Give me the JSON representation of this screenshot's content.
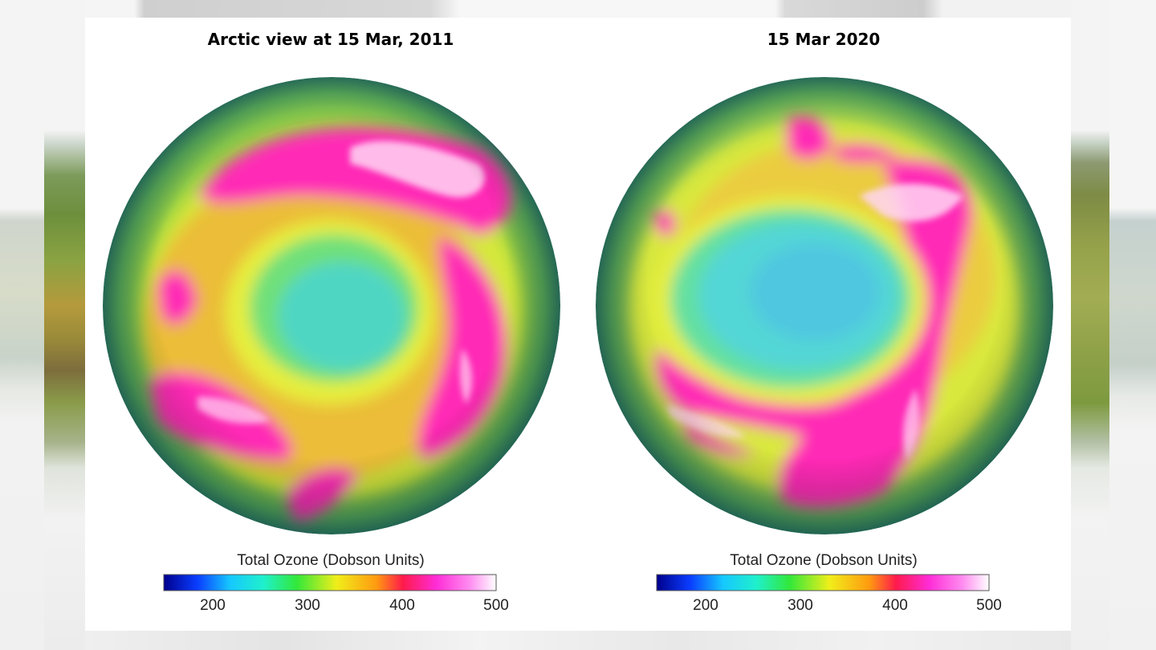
{
  "colors": {
    "ocean_rim": "#2f7d62",
    "low_ozone": "#4fd0c8",
    "mid_ozone": "#e9ee3c",
    "high_ozone": "#ff1fb4",
    "very_high_ozone": "#ffe6f6"
  },
  "maps": [
    {
      "title": "Arctic view at 15 Mar, 2011",
      "colorbar": {
        "label": "Total Ozone  (Dobson Units)",
        "ticks": [
          "200",
          "300",
          "400",
          "500"
        ],
        "range": [
          150,
          500
        ]
      }
    },
    {
      "title": "15 Mar 2020",
      "colorbar": {
        "label": "Total Ozone  (Dobson Units)",
        "ticks": [
          "200",
          "300",
          "400",
          "500"
        ],
        "range": [
          150,
          500
        ]
      }
    }
  ]
}
